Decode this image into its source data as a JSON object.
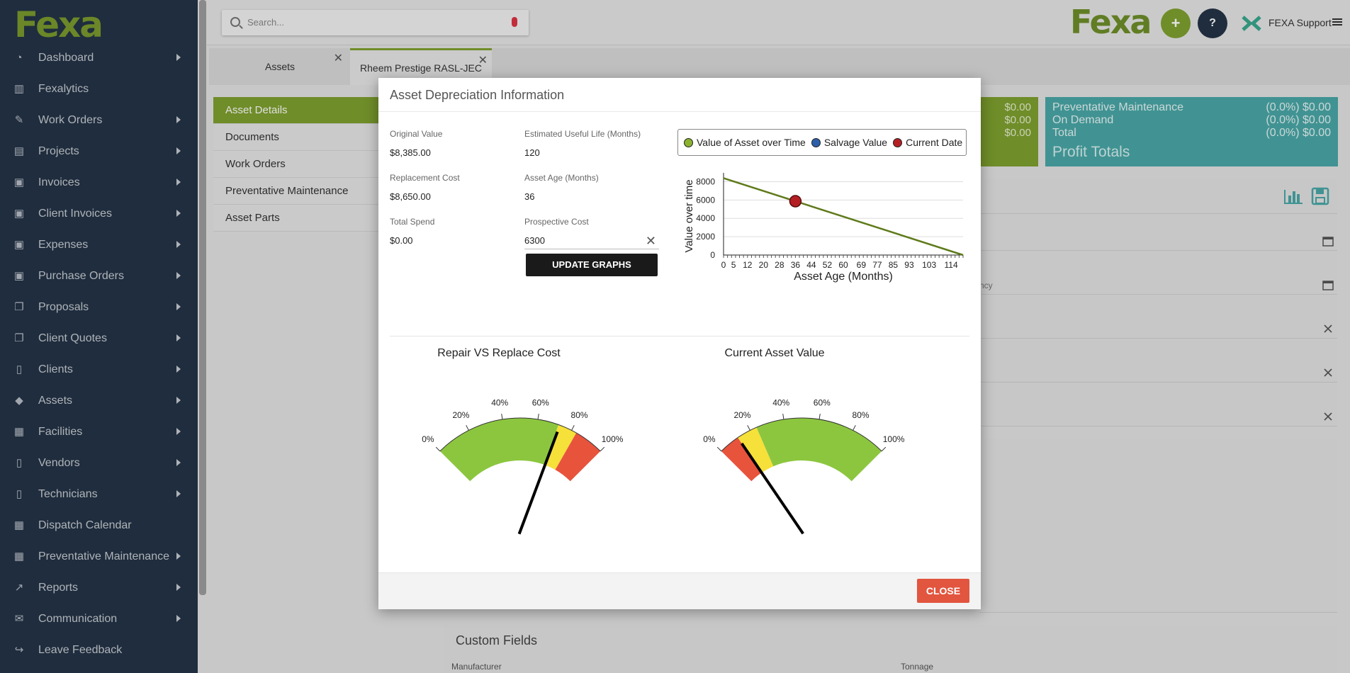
{
  "sidebar": {
    "logo": "Fexa",
    "items": [
      {
        "label": "Dashboard",
        "icon": "dashboard-icon",
        "glyph": "◔",
        "arrow": true
      },
      {
        "label": "Fexalytics",
        "icon": "bar-chart-icon",
        "glyph": "▥",
        "arrow": false
      },
      {
        "label": "Work Orders",
        "icon": "wrench-icon",
        "glyph": "✎",
        "arrow": true
      },
      {
        "label": "Projects",
        "icon": "book-icon",
        "glyph": "▤",
        "arrow": true
      },
      {
        "label": "Invoices",
        "icon": "money-icon",
        "glyph": "▣",
        "arrow": true
      },
      {
        "label": "Client Invoices",
        "icon": "money-icon",
        "glyph": "▣",
        "arrow": true
      },
      {
        "label": "Expenses",
        "icon": "money-icon",
        "glyph": "▣",
        "arrow": true
      },
      {
        "label": "Purchase Orders",
        "icon": "money-icon",
        "glyph": "▣",
        "arrow": true
      },
      {
        "label": "Proposals",
        "icon": "copy-icon",
        "glyph": "❐",
        "arrow": true
      },
      {
        "label": "Client Quotes",
        "icon": "copy-icon",
        "glyph": "❐",
        "arrow": true
      },
      {
        "label": "Clients",
        "icon": "badge-icon",
        "glyph": "▯",
        "arrow": true
      },
      {
        "label": "Assets",
        "icon": "tags-icon",
        "glyph": "◆",
        "arrow": true
      },
      {
        "label": "Facilities",
        "icon": "building-icon",
        "glyph": "▦",
        "arrow": true
      },
      {
        "label": "Vendors",
        "icon": "badge-icon",
        "glyph": "▯",
        "arrow": true
      },
      {
        "label": "Technicians",
        "icon": "badge-icon",
        "glyph": "▯",
        "arrow": true
      },
      {
        "label": "Dispatch Calendar",
        "icon": "calendar-icon",
        "glyph": "▦",
        "arrow": false
      },
      {
        "label": "Preventative Maintenance",
        "icon": "calendar-icon",
        "glyph": "▦",
        "arrow": true
      },
      {
        "label": "Reports",
        "icon": "line-chart-icon",
        "glyph": "↗",
        "arrow": true
      },
      {
        "label": "Communication",
        "icon": "envelope-icon",
        "glyph": "✉",
        "arrow": true
      },
      {
        "label": "Leave Feedback",
        "icon": "share-icon",
        "glyph": "↪",
        "arrow": false
      }
    ]
  },
  "header": {
    "search_placeholder": "Search...",
    "brand": "Fexa",
    "add_label": "+",
    "help_label": "?",
    "user": "FEXA Support"
  },
  "tabs": [
    {
      "label": "Assets",
      "close": "✕"
    },
    {
      "label": "Rheem Prestige RASL-JEC",
      "close": "✕"
    }
  ],
  "submenu": [
    "Asset Details",
    "Documents",
    "Work Orders",
    "Preventative Maintenance",
    "Asset Parts"
  ],
  "kpi": {
    "green_values": [
      "$0.00",
      "$0.00",
      "$0.00"
    ],
    "teal_rows": [
      {
        "label": "Preventative Maintenance",
        "value": "(0.0%) $0.00"
      },
      {
        "label": "On Demand",
        "value": "(0.0%) $0.00"
      },
      {
        "label": "Total",
        "value": "(0.0%) $0.00"
      }
    ],
    "teal_title": "Profit Totals"
  },
  "background": {
    "partial_label": "ncy",
    "custom_fields_title": "Custom Fields",
    "manufacturer_label": "Manufacturer",
    "tonnage_label": "Tonnage"
  },
  "modal": {
    "title": "Asset Depreciation Information",
    "fields": {
      "original_value_label": "Original Value",
      "original_value": "$8,385.00",
      "useful_life_label": "Estimated Useful Life (Months)",
      "useful_life": "120",
      "replacement_cost_label": "Replacement Cost",
      "replacement_cost": "$8,650.00",
      "asset_age_label": "Asset Age (Months)",
      "asset_age": "36",
      "total_spend_label": "Total Spend",
      "total_spend": "$0.00",
      "prospective_cost_label": "Prospective Cost",
      "prospective_cost": "6300"
    },
    "update_label": "UPDATE GRAPHS",
    "clear_icon": "✕",
    "close_label": "CLOSE",
    "legend": [
      {
        "label": "Value of Asset over Time",
        "color": "#8bb22e"
      },
      {
        "label": "Salvage Value",
        "color": "#2d5fa8"
      },
      {
        "label": "Current Date",
        "color": "#b51f24"
      }
    ],
    "gauges": [
      {
        "title": "Repair VS Replace Cost",
        "zones": [
          "green",
          "yellow",
          "red"
        ],
        "needle_pct": 72.8
      },
      {
        "title": "Current Asset Value",
        "zones": [
          "red",
          "yellow",
          "green"
        ],
        "needle_pct": 12
      }
    ],
    "gauge_ticks": [
      "0%",
      "20%",
      "40%",
      "60%",
      "80%",
      "100%"
    ]
  },
  "chart_data": {
    "type": "line",
    "series": [
      {
        "name": "Value of Asset over Time",
        "x": [
          0,
          120
        ],
        "y": [
          8385,
          0
        ],
        "color": "#5f7a1a"
      }
    ],
    "current_point": {
      "x": 36,
      "y": 5870
    },
    "xlabel": "Asset Age (Months)",
    "ylabel": "Value over time",
    "x_ticks": [
      "0",
      "5",
      "12",
      "20",
      "28",
      "36",
      "44",
      "52",
      "60",
      "69",
      "77",
      "85",
      "93",
      "103",
      "114"
    ],
    "x_tick_values": [
      0,
      5,
      12,
      20,
      28,
      36,
      44,
      52,
      60,
      69,
      77,
      85,
      93,
      103,
      114
    ],
    "y_ticks": [
      0,
      2000,
      4000,
      6000,
      8000
    ],
    "xlim": [
      0,
      120
    ],
    "ylim": [
      0,
      8500
    ],
    "grid": true
  }
}
